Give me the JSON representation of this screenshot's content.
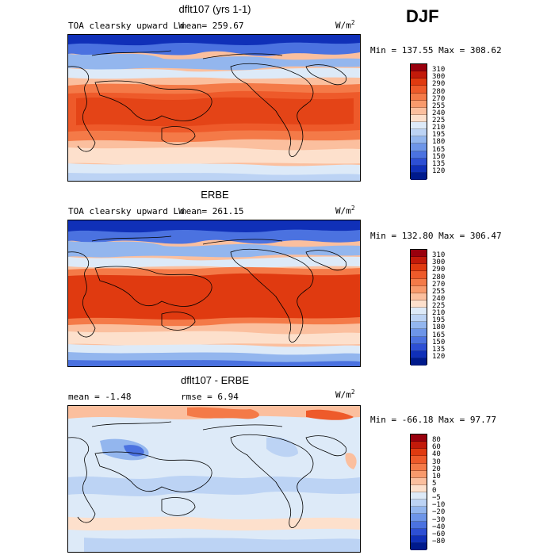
{
  "season": "DJF",
  "panels": [
    {
      "title": "dflt107 (yrs 1-1)",
      "variable": "TOA clearsky upward LW",
      "mean": "mean= 259.67",
      "units_base": "W/m",
      "units_exp": "2",
      "minmax": "Min = 137.55 Max = 308.62",
      "levels": [
        "310",
        "300",
        "290",
        "280",
        "270",
        "255",
        "240",
        "225",
        "210",
        "195",
        "180",
        "165",
        "150",
        "135",
        "120"
      ],
      "colors": [
        "#99000d",
        "#c21a0a",
        "#e03a10",
        "#ee5a2a",
        "#f47a48",
        "#f89a6c",
        "#fbbf9e",
        "#fde0cc",
        "#ddeaf8",
        "#bcd3f4",
        "#93b6ee",
        "#6d95e8",
        "#4b72e0",
        "#2d4fd4",
        "#1030b8",
        "#001a8c"
      ]
    },
    {
      "title": "ERBE",
      "variable": "TOA clearsky upward LW",
      "mean": "mean= 261.15",
      "units_base": "W/m",
      "units_exp": "2",
      "minmax": "Min = 132.80 Max = 306.47",
      "levels": [
        "310",
        "300",
        "290",
        "280",
        "270",
        "255",
        "240",
        "225",
        "210",
        "195",
        "180",
        "165",
        "150",
        "135",
        "120"
      ],
      "colors": [
        "#99000d",
        "#c21a0a",
        "#e03a10",
        "#ee5a2a",
        "#f47a48",
        "#f89a6c",
        "#fbbf9e",
        "#fde0cc",
        "#ddeaf8",
        "#bcd3f4",
        "#93b6ee",
        "#6d95e8",
        "#4b72e0",
        "#2d4fd4",
        "#1030b8",
        "#001a8c"
      ]
    },
    {
      "title": "dflt107 - ERBE",
      "mean": "mean =   -1.48",
      "rmse": "rmse =    6.94",
      "units_base": "W/m",
      "units_exp": "2",
      "minmax": "Min = -66.18 Max =  97.77",
      "levels": [
        "80",
        "60",
        "40",
        "30",
        "20",
        "10",
        "5",
        "0",
        "−5",
        "−10",
        "−20",
        "−30",
        "−40",
        "−60",
        "−80"
      ],
      "colors": [
        "#99000d",
        "#c21a0a",
        "#e03a10",
        "#ee5a2a",
        "#f47a48",
        "#f89a6c",
        "#fbbf9e",
        "#fde0cc",
        "#ddeaf8",
        "#bcd3f4",
        "#93b6ee",
        "#6d95e8",
        "#4b72e0",
        "#2d4fd4",
        "#1030b8",
        "#001a8c"
      ]
    }
  ]
}
